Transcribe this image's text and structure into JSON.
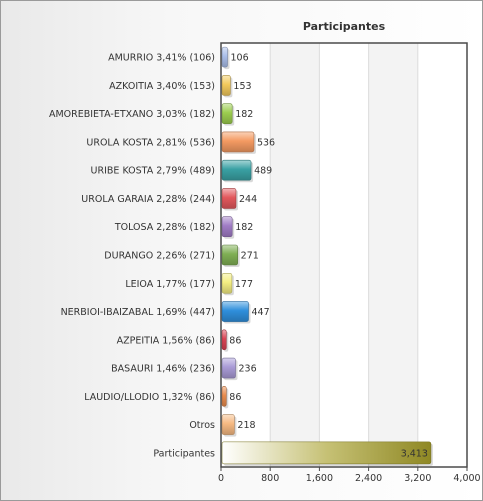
{
  "chart_data": {
    "type": "bar",
    "orientation": "horizontal",
    "title": "Participantes",
    "xlim": [
      0,
      4000
    ],
    "x_ticks": [
      "0",
      "800",
      "1,600",
      "2,400",
      "3,200",
      "4,000"
    ],
    "grid": true,
    "categories": [
      "AMURRIO 3,41%  (106)",
      "AZKOITIA 3,40%  (153)",
      "AMOREBIETA-ETXANO 3,03%  (182)",
      "UROLA KOSTA 2,81%  (536)",
      "URIBE KOSTA 2,79%  (489)",
      "UROLA GARAIA 2,28%  (244)",
      "TOLOSA 2,28%  (182)",
      "DURANGO 2,26%  (271)",
      "LEIOA 1,77%  (177)",
      "NERBIOI-IBAIZABAL 1,69%  (447)",
      "AZPEITIA 1,56%  (86)",
      "BASAURI 1,46%  (236)",
      "LAUDIO/LLODIO 1,32%  (86)",
      "Otros",
      "Participantes"
    ],
    "values": [
      106,
      153,
      182,
      536,
      489,
      244,
      182,
      271,
      177,
      447,
      86,
      236,
      86,
      218,
      3413
    ],
    "value_labels": [
      "106",
      "153",
      "182",
      "536",
      "489",
      "244",
      "182",
      "271",
      "177",
      "447",
      "86",
      "236",
      "86",
      "218",
      "3,413"
    ],
    "colors": [
      "#a9bde8",
      "#f2c95c",
      "#9ccd4f",
      "#f49a62",
      "#3aa1a4",
      "#e2585c",
      "#a07cc5",
      "#7faf54",
      "#f4ee82",
      "#2f8fdc",
      "#d94454",
      "#a99bd6",
      "#e98c4e",
      "#f6b982",
      "#a8a02a"
    ]
  }
}
